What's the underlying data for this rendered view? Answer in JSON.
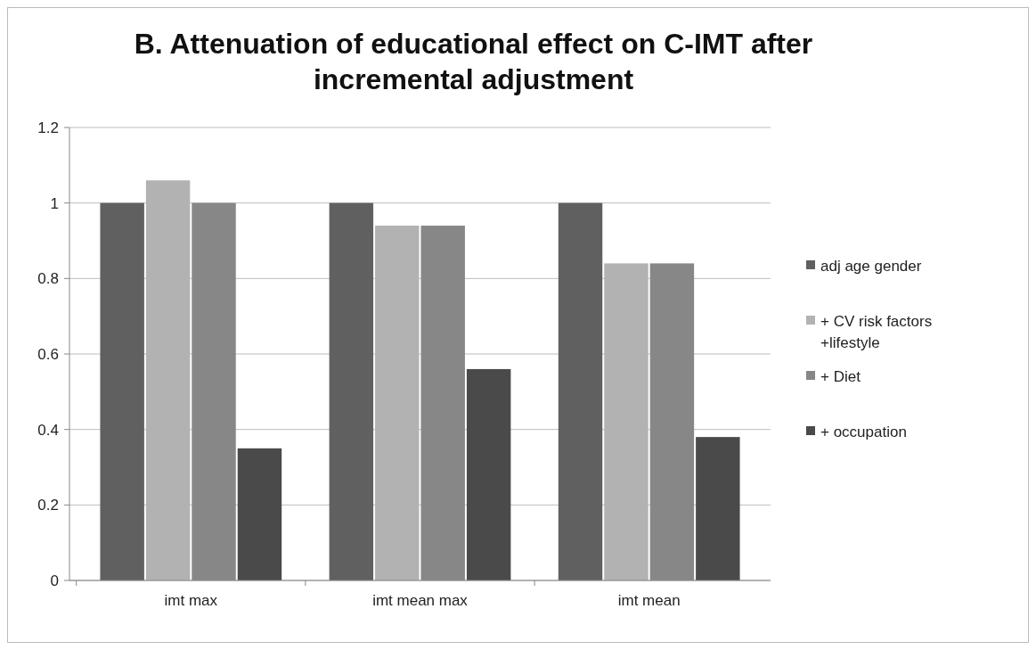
{
  "chart_data": {
    "type": "bar",
    "title": "B. Attenuation of educational effect  on C-IMT after incremental adjustment",
    "categories": [
      "imt max",
      "imt mean max",
      "imt mean"
    ],
    "series": [
      {
        "name": "adj age gender",
        "color": "#606060",
        "values": [
          1,
          1,
          1
        ]
      },
      {
        "name": "+ CV risk factors +lifestyle",
        "color": "#b2b2b2",
        "values": [
          1.06,
          0.94,
          0.84
        ]
      },
      {
        "name": "+ Diet",
        "color": "#878787",
        "values": [
          1,
          0.94,
          0.84
        ]
      },
      {
        "name": "+ occupation",
        "color": "#4a4a4a",
        "values": [
          0.35,
          0.56,
          0.38
        ]
      }
    ],
    "ylim": [
      0,
      1.2
    ],
    "yticks": [
      0,
      0.2,
      0.4,
      0.6,
      0.8,
      1,
      1.2
    ],
    "grid": "y",
    "legend": "right"
  }
}
